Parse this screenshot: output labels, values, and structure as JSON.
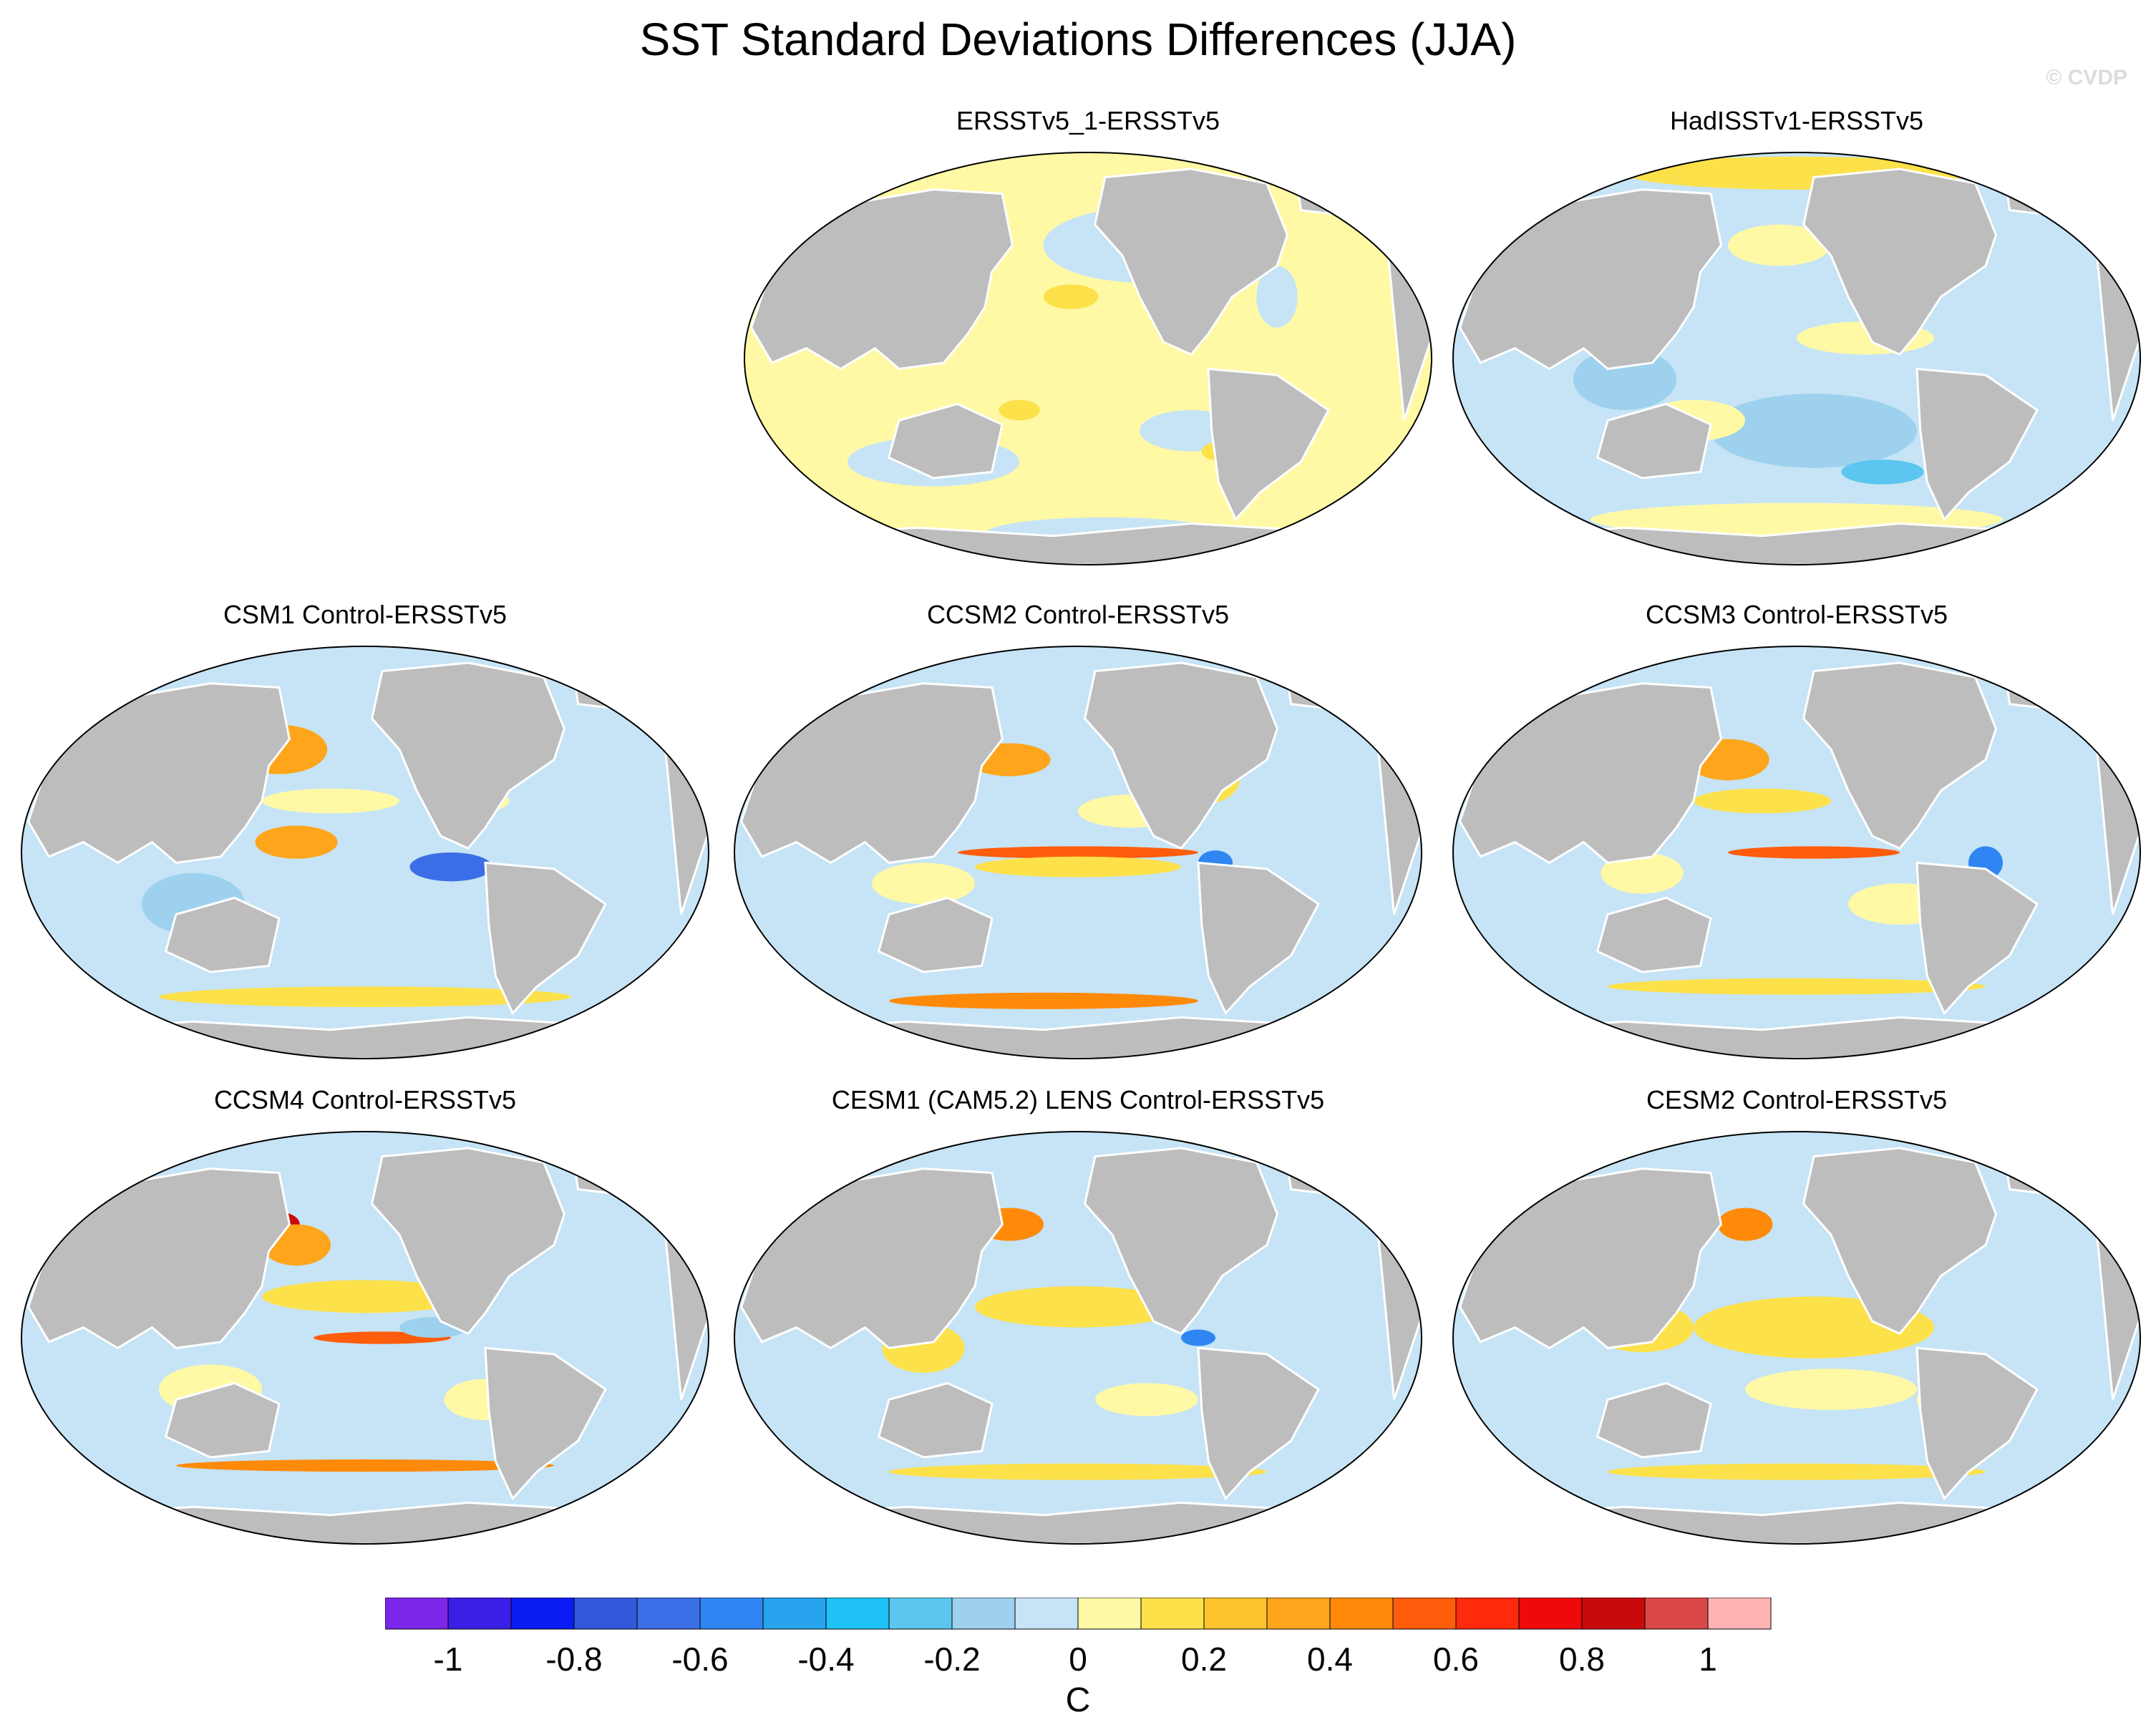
{
  "title": "SST Standard Deviations Differences (JJA)",
  "watermark": "© CVDP",
  "colorbar": {
    "unit": "C",
    "colors": [
      "#7b26e8",
      "#3b1fe6",
      "#0b1cf5",
      "#3259dc",
      "#3b6ee6",
      "#2f86f2",
      "#28a4ef",
      "#1fc3f5",
      "#5bc6ef",
      "#9dd1ee",
      "#c6e4f6",
      "#fff9a6",
      "#fde14a",
      "#fdc32c",
      "#ffa51b",
      "#ff8a0a",
      "#ff5c0b",
      "#ff2a0b",
      "#ee0a0a",
      "#c90a0a",
      "#db4848",
      "#ffb3b3"
    ],
    "tick_labels": [
      "-1",
      "-0.8",
      "-0.6",
      "-0.4",
      "-0.2",
      "0",
      "0.2",
      "0.4",
      "0.6",
      "0.8",
      "1"
    ]
  },
  "panels": [
    {
      "id": "p1",
      "label": "ERSSTv5_1-ERSSTv5",
      "base": "#fff9a6",
      "blobs": [
        [
          "#c6e4f6",
          0.15,
          -0.55,
          0.28,
          0.18
        ],
        [
          "#c6e4f6",
          0.3,
          0.35,
          0.15,
          0.1
        ],
        [
          "#c6e4f6",
          -0.45,
          0.5,
          0.25,
          0.12
        ],
        [
          "#fde14a",
          -0.05,
          -0.3,
          0.08,
          0.06
        ],
        [
          "#fde14a",
          0.4,
          0.45,
          0.07,
          0.05
        ],
        [
          "#c6e4f6",
          0.55,
          -0.3,
          0.06,
          0.15
        ],
        [
          "#fde14a",
          -0.2,
          0.25,
          0.06,
          0.05
        ],
        [
          "#c6e4f6",
          0.05,
          0.85,
          0.35,
          0.08
        ]
      ]
    },
    {
      "id": "p2",
      "label": "HadISSTv1-ERSSTv5",
      "base": "#c6e4f6",
      "blobs": [
        [
          "#fde14a",
          0.0,
          -0.9,
          0.5,
          0.08
        ],
        [
          "#9dd1ee",
          0.05,
          0.35,
          0.3,
          0.18
        ],
        [
          "#fff9a6",
          0.2,
          -0.1,
          0.2,
          0.08
        ],
        [
          "#fff9a6",
          -0.3,
          0.3,
          0.15,
          0.1
        ],
        [
          "#9dd1ee",
          -0.5,
          0.1,
          0.15,
          0.15
        ],
        [
          "#fff9a6",
          0.0,
          0.78,
          0.6,
          0.08
        ],
        [
          "#5bc6ef",
          0.25,
          0.55,
          0.12,
          0.06
        ],
        [
          "#fff9a6",
          -0.05,
          -0.55,
          0.15,
          0.1
        ]
      ]
    },
    {
      "id": "p3",
      "label": "CSM1 Control-ERSSTv5",
      "base": "#c6e4f6",
      "blobs": [
        [
          "#ffa51b",
          -0.25,
          -0.5,
          0.14,
          0.12
        ],
        [
          "#ffa51b",
          -0.2,
          -0.05,
          0.12,
          0.08
        ],
        [
          "#ffb3b3",
          0.43,
          -0.55,
          0.06,
          0.08
        ],
        [
          "#ee0a0a",
          0.4,
          -0.5,
          0.05,
          0.05
        ],
        [
          "#3b6ee6",
          0.25,
          0.07,
          0.12,
          0.07
        ],
        [
          "#fff9a6",
          -0.1,
          -0.25,
          0.2,
          0.06
        ],
        [
          "#fde14a",
          0.0,
          0.7,
          0.6,
          0.05
        ],
        [
          "#9dd1ee",
          -0.5,
          0.25,
          0.15,
          0.15
        ],
        [
          "#fff9a6",
          0.3,
          -0.25,
          0.12,
          0.06
        ]
      ]
    },
    {
      "id": "p4",
      "label": "CCSM2 Control-ERSSTv5",
      "base": "#c6e4f6",
      "blobs": [
        [
          "#ffa51b",
          -0.2,
          -0.45,
          0.12,
          0.08
        ],
        [
          "#ff5c0b",
          0.0,
          0.0,
          0.35,
          0.03
        ],
        [
          "#fde14a",
          0.0,
          0.07,
          0.3,
          0.05
        ],
        [
          "#fde14a",
          0.35,
          -0.35,
          0.12,
          0.12
        ],
        [
          "#ff8a0a",
          -0.1,
          0.72,
          0.45,
          0.04
        ],
        [
          "#fff9a6",
          -0.45,
          0.15,
          0.15,
          0.1
        ],
        [
          "#2f86f2",
          0.4,
          0.05,
          0.05,
          0.06
        ],
        [
          "#fff9a6",
          0.15,
          -0.2,
          0.15,
          0.08
        ]
      ]
    },
    {
      "id": "p5",
      "label": "CCSM3 Control-ERSSTv5",
      "base": "#c6e4f6",
      "blobs": [
        [
          "#ffa51b",
          -0.2,
          -0.45,
          0.12,
          0.1
        ],
        [
          "#ee0a0a",
          0.42,
          -0.55,
          0.08,
          0.08
        ],
        [
          "#ff5c0b",
          0.05,
          0.0,
          0.25,
          0.03
        ],
        [
          "#fde14a",
          -0.1,
          -0.25,
          0.2,
          0.06
        ],
        [
          "#fff9a6",
          0.3,
          0.25,
          0.15,
          0.1
        ],
        [
          "#fde14a",
          0.0,
          0.65,
          0.55,
          0.04
        ],
        [
          "#2f86f2",
          0.55,
          0.05,
          0.05,
          0.08
        ],
        [
          "#fff9a6",
          -0.45,
          0.1,
          0.12,
          0.1
        ]
      ]
    },
    {
      "id": "p6",
      "label": "CCSM4 Control-ERSSTv5",
      "base": "#c6e4f6",
      "blobs": [
        [
          "#c90a0a",
          -0.25,
          -0.55,
          0.06,
          0.06
        ],
        [
          "#ffa51b",
          -0.2,
          -0.45,
          0.1,
          0.1
        ],
        [
          "#ff5c0b",
          0.05,
          0.0,
          0.2,
          0.03
        ],
        [
          "#fde14a",
          0.0,
          -0.2,
          0.3,
          0.08
        ],
        [
          "#ff8a0a",
          0.0,
          0.62,
          0.55,
          0.03
        ],
        [
          "#fff9a6",
          -0.45,
          0.25,
          0.15,
          0.12
        ],
        [
          "#fff9a6",
          0.35,
          0.3,
          0.12,
          0.1
        ],
        [
          "#9dd1ee",
          0.2,
          -0.05,
          0.1,
          0.05
        ],
        [
          "#ee0a0a",
          0.35,
          -0.75,
          0.05,
          0.06
        ]
      ]
    },
    {
      "id": "p7",
      "label": "CESM1 (CAM5.2) LENS Control-ERSSTv5",
      "base": "#c6e4f6",
      "blobs": [
        [
          "#ff8a0a",
          -0.2,
          -0.55,
          0.1,
          0.08
        ],
        [
          "#fde14a",
          0.0,
          -0.15,
          0.3,
          0.1
        ],
        [
          "#ff5c0b",
          -0.5,
          -0.05,
          0.05,
          0.08
        ],
        [
          "#fde14a",
          -0.45,
          0.05,
          0.12,
          0.12
        ],
        [
          "#fde14a",
          0.0,
          0.65,
          0.55,
          0.04
        ],
        [
          "#fff9a6",
          0.2,
          0.3,
          0.15,
          0.08
        ],
        [
          "#c90a0a",
          0.35,
          -0.75,
          0.05,
          0.06
        ],
        [
          "#2f86f2",
          0.35,
          0.0,
          0.05,
          0.04
        ]
      ]
    },
    {
      "id": "p8",
      "label": "CESM2 Control-ERSSTv5",
      "base": "#c6e4f6",
      "blobs": [
        [
          "#ff8a0a",
          -0.15,
          -0.55,
          0.08,
          0.08
        ],
        [
          "#ff5c0b",
          -0.05,
          0.0,
          0.15,
          0.04
        ],
        [
          "#fde14a",
          0.05,
          -0.05,
          0.35,
          0.15
        ],
        [
          "#fff9a6",
          0.1,
          0.25,
          0.25,
          0.1
        ],
        [
          "#fde14a",
          -0.45,
          -0.05,
          0.15,
          0.12
        ],
        [
          "#fde14a",
          0.0,
          0.65,
          0.55,
          0.04
        ],
        [
          "#ee0a0a",
          0.4,
          -0.75,
          0.05,
          0.06
        ],
        [
          "#fff9a6",
          0.45,
          0.3,
          0.1,
          0.1
        ]
      ]
    }
  ],
  "chart_data": {
    "type": "heatmap",
    "title": "SST Standard Deviations Differences (JJA)",
    "projection": "Robinson (Pacific-centered)",
    "colorbar_unit": "C",
    "color_levels": [
      -1.0,
      -0.9,
      -0.8,
      -0.7,
      -0.6,
      -0.5,
      -0.4,
      -0.3,
      -0.2,
      -0.1,
      0,
      0.1,
      0.2,
      0.3,
      0.4,
      0.5,
      0.6,
      0.7,
      0.8,
      0.9,
      1.0
    ],
    "panels": [
      "ERSSTv5_1-ERSSTv5",
      "HadISSTv1-ERSSTv5",
      "CSM1 Control-ERSSTv5",
      "CCSM2 Control-ERSSTv5",
      "CCSM3 Control-ERSSTv5",
      "CCSM4 Control-ERSSTv5",
      "CESM1 (CAM5.2) LENS Control-ERSSTv5",
      "CESM2 Control-ERSSTv5"
    ]
  }
}
